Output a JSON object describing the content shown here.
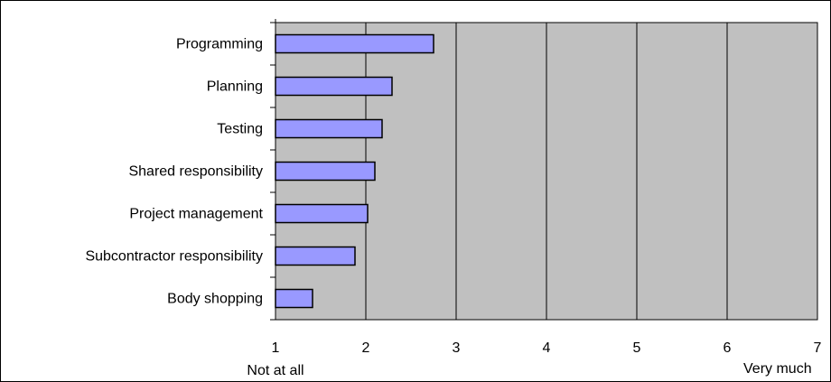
{
  "chart_data": {
    "type": "bar",
    "orientation": "horizontal",
    "categories": [
      "Programming",
      "Planning",
      "Testing",
      "Shared responsibility",
      "Project management",
      "Subcontractor responsibility",
      "Body shopping"
    ],
    "values": [
      2.75,
      2.29,
      2.18,
      2.1,
      2.02,
      1.88,
      1.41
    ],
    "xlim": [
      1,
      7
    ],
    "xticks": [
      "1",
      "2",
      "3",
      "4",
      "5",
      "6",
      "7"
    ],
    "x_endpoint_labels": {
      "min": "Not at all",
      "max": "Very much"
    },
    "grid": "vertical",
    "legend": "none",
    "title": "",
    "xlabel": "",
    "ylabel": "",
    "colors": {
      "bar_fill": "#9999ff",
      "plot_background": "#c0c0c0",
      "gridline": "#000000"
    }
  }
}
